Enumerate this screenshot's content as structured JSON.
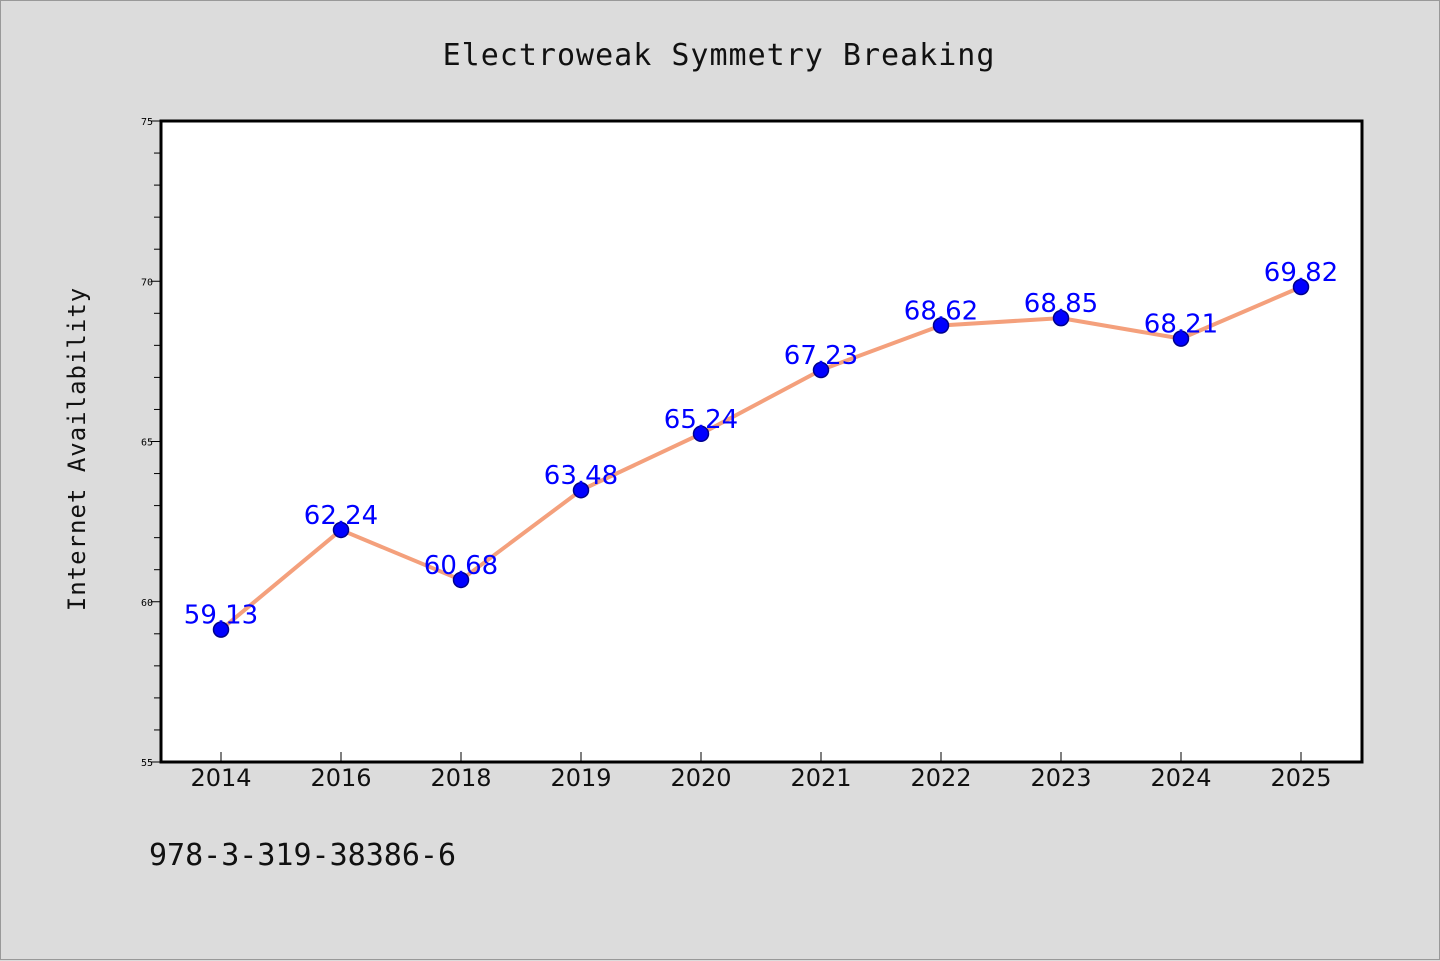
{
  "chart_data": {
    "type": "line",
    "title": "Electroweak Symmetry Breaking",
    "xlabel": "",
    "ylabel": "Internet Availability",
    "categories": [
      "2014",
      "2016",
      "2018",
      "2019",
      "2020",
      "2021",
      "2022",
      "2023",
      "2024",
      "2025"
    ],
    "series": [
      {
        "values": [
          59.13,
          62.24,
          60.68,
          63.48,
          65.24,
          67.23,
          68.62,
          68.85,
          68.21,
          69.82
        ],
        "labels": [
          "59.13",
          "62.24",
          "60.68",
          "63.48",
          "65.24",
          "67.23",
          "68.62",
          "68.85",
          "68.21",
          "69.82"
        ]
      }
    ],
    "ylim": [
      55,
      75
    ],
    "yticks": [
      "55",
      "60",
      "65",
      "70",
      "75"
    ],
    "grid": false,
    "legend": "none",
    "colors": {
      "line": "#f4a07c",
      "marker": "#0000ff",
      "marker_edge": "#00008b",
      "data_label": "#0000ff",
      "background": "#dcdcdc",
      "plot_background": "#ffffff"
    }
  },
  "footnote": "978-3-319-38386-6"
}
